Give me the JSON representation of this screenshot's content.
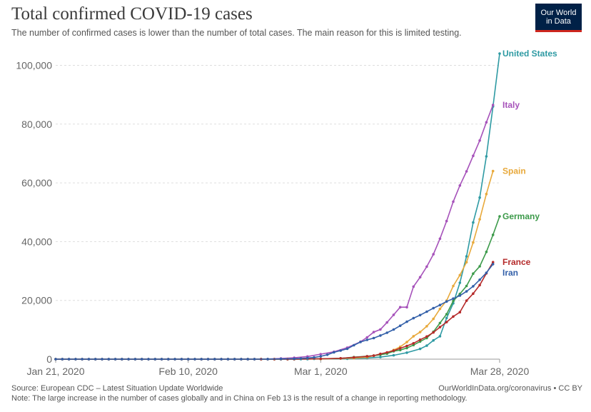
{
  "title": "Total confirmed COVID-19 cases",
  "subtitle": "The number of confirmed cases is lower than the number of total cases. The main reason for this is limited testing.",
  "logo": {
    "line1": "Our World",
    "line2": "in Data"
  },
  "footer": {
    "source": "Source: European CDC – Latest Situation Update Worldwide",
    "url": "OurWorldInData.org/coronavirus • CC BY",
    "note": "Note: The large increase in the number of cases globally and in China on Feb 13 is the result of a change in reporting methodology."
  },
  "chart_data": {
    "type": "line",
    "x_start": "2020-01-21",
    "x_end": "2020-03-28",
    "x_ticks": [
      {
        "date": "2020-01-21",
        "label": "Jan 21, 2020"
      },
      {
        "date": "2020-02-10",
        "label": "Feb 10, 2020"
      },
      {
        "date": "2020-03-01",
        "label": "Mar 1, 2020"
      },
      {
        "date": "2020-03-28",
        "label": "Mar 28, 2020"
      }
    ],
    "y_ticks": [
      {
        "value": 0,
        "label": "0"
      },
      {
        "value": 20000,
        "label": "20,000"
      },
      {
        "value": 40000,
        "label": "40,000"
      },
      {
        "value": 60000,
        "label": "60,000"
      },
      {
        "value": 80000,
        "label": "80,000"
      },
      {
        "value": 100000,
        "label": "100,000"
      }
    ],
    "ylim": [
      0,
      104000
    ],
    "grid": "horizontal dashed",
    "series": [
      {
        "name": "United States",
        "color": "#2e9aa3",
        "points": [
          [
            "2020-02-29",
            100
          ],
          [
            "2020-03-05",
            150
          ],
          [
            "2020-03-08",
            400
          ],
          [
            "2020-03-10",
            700
          ],
          [
            "2020-03-12",
            1300
          ],
          [
            "2020-03-14",
            2200
          ],
          [
            "2020-03-16",
            3500
          ],
          [
            "2020-03-17",
            4600
          ],
          [
            "2020-03-18",
            6400
          ],
          [
            "2020-03-19",
            7800
          ],
          [
            "2020-03-20",
            14000
          ],
          [
            "2020-03-21",
            19000
          ],
          [
            "2020-03-22",
            26000
          ],
          [
            "2020-03-23",
            35000
          ],
          [
            "2020-03-24",
            46500
          ],
          [
            "2020-03-25",
            55000
          ],
          [
            "2020-03-26",
            69000
          ],
          [
            "2020-03-27",
            86000
          ],
          [
            "2020-03-28",
            104000
          ]
        ]
      },
      {
        "name": "Italy",
        "color": "#a652ba",
        "points": [
          [
            "2020-02-22",
            60
          ],
          [
            "2020-02-24",
            230
          ],
          [
            "2020-02-26",
            450
          ],
          [
            "2020-02-28",
            900
          ],
          [
            "2020-03-01",
            1700
          ],
          [
            "2020-03-03",
            2500
          ],
          [
            "2020-03-05",
            3900
          ],
          [
            "2020-03-07",
            5900
          ],
          [
            "2020-03-08",
            7400
          ],
          [
            "2020-03-09",
            9200
          ],
          [
            "2020-03-10",
            10100
          ],
          [
            "2020-03-11",
            12500
          ],
          [
            "2020-03-12",
            15100
          ],
          [
            "2020-03-13",
            17700
          ],
          [
            "2020-03-14",
            17700
          ],
          [
            "2020-03-15",
            24700
          ],
          [
            "2020-03-16",
            27900
          ],
          [
            "2020-03-17",
            31500
          ],
          [
            "2020-03-18",
            35700
          ],
          [
            "2020-03-19",
            41000
          ],
          [
            "2020-03-20",
            47000
          ],
          [
            "2020-03-21",
            53600
          ],
          [
            "2020-03-22",
            59100
          ],
          [
            "2020-03-23",
            63900
          ],
          [
            "2020-03-24",
            69200
          ],
          [
            "2020-03-25",
            74400
          ],
          [
            "2020-03-26",
            80600
          ],
          [
            "2020-03-27",
            86500
          ]
        ]
      },
      {
        "name": "Spain",
        "color": "#e8a93b",
        "points": [
          [
            "2020-02-26",
            10
          ],
          [
            "2020-03-01",
            80
          ],
          [
            "2020-03-04",
            220
          ],
          [
            "2020-03-06",
            400
          ],
          [
            "2020-03-08",
            670
          ],
          [
            "2020-03-09",
            1200
          ],
          [
            "2020-03-10",
            1700
          ],
          [
            "2020-03-11",
            2200
          ],
          [
            "2020-03-12",
            3100
          ],
          [
            "2020-03-13",
            4200
          ],
          [
            "2020-03-14",
            5800
          ],
          [
            "2020-03-15",
            7800
          ],
          [
            "2020-03-16",
            9200
          ],
          [
            "2020-03-17",
            11200
          ],
          [
            "2020-03-18",
            13700
          ],
          [
            "2020-03-19",
            17100
          ],
          [
            "2020-03-20",
            19900
          ],
          [
            "2020-03-21",
            24900
          ],
          [
            "2020-03-22",
            28600
          ],
          [
            "2020-03-23",
            33000
          ],
          [
            "2020-03-24",
            39700
          ],
          [
            "2020-03-25",
            47600
          ],
          [
            "2020-03-26",
            56200
          ],
          [
            "2020-03-27",
            64000
          ]
        ]
      },
      {
        "name": "Germany",
        "color": "#3c9a4a",
        "points": [
          [
            "2020-02-26",
            20
          ],
          [
            "2020-03-01",
            130
          ],
          [
            "2020-03-04",
            260
          ],
          [
            "2020-03-06",
            670
          ],
          [
            "2020-03-08",
            1000
          ],
          [
            "2020-03-09",
            1200
          ],
          [
            "2020-03-10",
            1500
          ],
          [
            "2020-03-11",
            1900
          ],
          [
            "2020-03-12",
            2700
          ],
          [
            "2020-03-13",
            3100
          ],
          [
            "2020-03-14",
            3800
          ],
          [
            "2020-03-15",
            4800
          ],
          [
            "2020-03-16",
            6000
          ],
          [
            "2020-03-17",
            7200
          ],
          [
            "2020-03-18",
            9300
          ],
          [
            "2020-03-19",
            12300
          ],
          [
            "2020-03-20",
            15300
          ],
          [
            "2020-03-21",
            19800
          ],
          [
            "2020-03-22",
            22200
          ],
          [
            "2020-03-23",
            24900
          ],
          [
            "2020-03-24",
            29100
          ],
          [
            "2020-03-25",
            31600
          ],
          [
            "2020-03-26",
            36500
          ],
          [
            "2020-03-27",
            42300
          ],
          [
            "2020-03-28",
            48600
          ]
        ]
      },
      {
        "name": "France",
        "color": "#b52a2a",
        "points": [
          [
            "2020-02-26",
            18
          ],
          [
            "2020-03-01",
            130
          ],
          [
            "2020-03-04",
            280
          ],
          [
            "2020-03-06",
            610
          ],
          [
            "2020-03-08",
            950
          ],
          [
            "2020-03-09",
            1200
          ],
          [
            "2020-03-10",
            1800
          ],
          [
            "2020-03-11",
            2300
          ],
          [
            "2020-03-12",
            2900
          ],
          [
            "2020-03-13",
            3700
          ],
          [
            "2020-03-14",
            4500
          ],
          [
            "2020-03-15",
            5400
          ],
          [
            "2020-03-16",
            6600
          ],
          [
            "2020-03-17",
            7700
          ],
          [
            "2020-03-18",
            9100
          ],
          [
            "2020-03-19",
            10900
          ],
          [
            "2020-03-20",
            12600
          ],
          [
            "2020-03-21",
            14500
          ],
          [
            "2020-03-22",
            16000
          ],
          [
            "2020-03-23",
            19900
          ],
          [
            "2020-03-24",
            22300
          ],
          [
            "2020-03-25",
            25200
          ],
          [
            "2020-03-26",
            29200
          ],
          [
            "2020-03-27",
            33000
          ]
        ]
      },
      {
        "name": "Iran",
        "color": "#3360a9",
        "points": [
          [
            "2020-02-20",
            5
          ],
          [
            "2020-02-22",
            28
          ],
          [
            "2020-02-24",
            61
          ],
          [
            "2020-02-26",
            139
          ],
          [
            "2020-02-27",
            245
          ],
          [
            "2020-02-28",
            388
          ],
          [
            "2020-02-29",
            593
          ],
          [
            "2020-03-01",
            978
          ],
          [
            "2020-03-02",
            1501
          ],
          [
            "2020-03-03",
            2336
          ],
          [
            "2020-03-04",
            2922
          ],
          [
            "2020-03-05",
            3513
          ],
          [
            "2020-03-06",
            4747
          ],
          [
            "2020-03-07",
            5823
          ],
          [
            "2020-03-08",
            6566
          ],
          [
            "2020-03-09",
            7161
          ],
          [
            "2020-03-10",
            8042
          ],
          [
            "2020-03-11",
            9000
          ],
          [
            "2020-03-12",
            10075
          ],
          [
            "2020-03-13",
            11364
          ],
          [
            "2020-03-14",
            12729
          ],
          [
            "2020-03-15",
            13938
          ],
          [
            "2020-03-16",
            14991
          ],
          [
            "2020-03-17",
            16169
          ],
          [
            "2020-03-18",
            17361
          ],
          [
            "2020-03-19",
            18407
          ],
          [
            "2020-03-20",
            19644
          ],
          [
            "2020-03-21",
            20610
          ],
          [
            "2020-03-22",
            21638
          ],
          [
            "2020-03-23",
            23049
          ],
          [
            "2020-03-24",
            24811
          ],
          [
            "2020-03-25",
            27017
          ],
          [
            "2020-03-26",
            29406
          ],
          [
            "2020-03-27",
            32332
          ]
        ]
      }
    ]
  }
}
